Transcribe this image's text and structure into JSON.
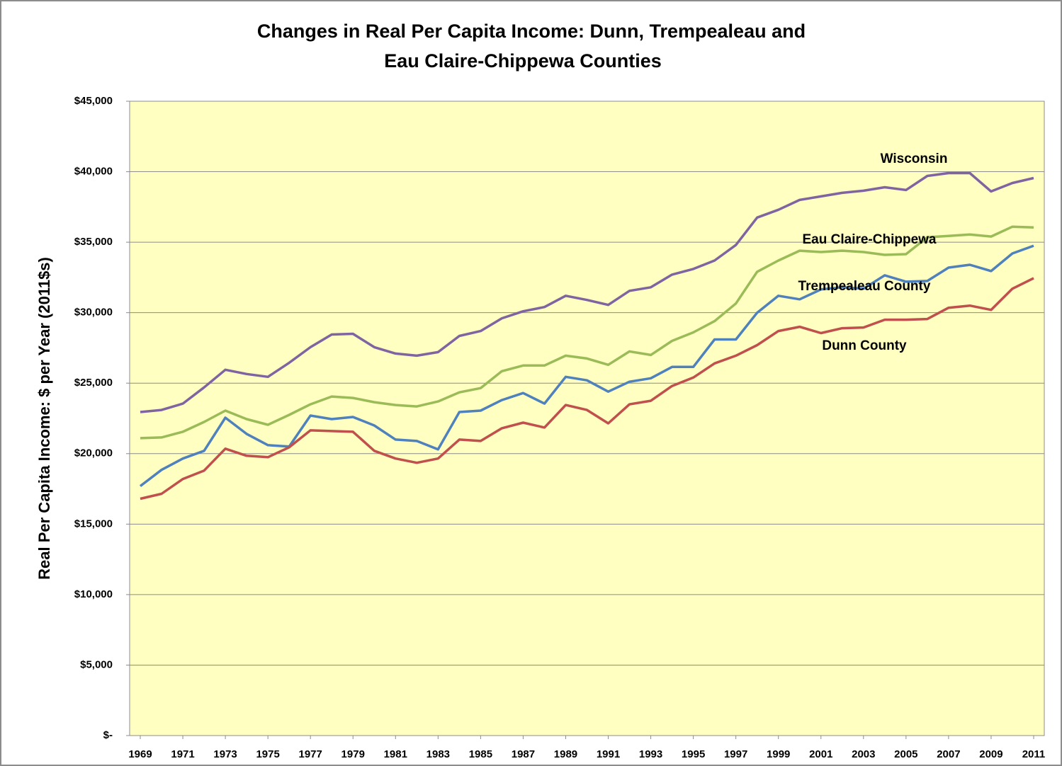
{
  "chart_data": {
    "type": "line",
    "title": [
      "Changes in Real Per Capita Income: Dunn, Trempealeau  and",
      "Eau Claire-Chippewa Counties"
    ],
    "y_label": "Real Per Capita Income: $ per Year (2011$s)",
    "x": [
      1969,
      1970,
      1971,
      1972,
      1973,
      1974,
      1975,
      1976,
      1977,
      1978,
      1979,
      1980,
      1981,
      1982,
      1983,
      1984,
      1985,
      1986,
      1987,
      1988,
      1989,
      1990,
      1991,
      1992,
      1993,
      1994,
      1995,
      1996,
      1997,
      1998,
      1999,
      2000,
      2001,
      2002,
      2003,
      2004,
      2005,
      2006,
      2007,
      2008,
      2009,
      2010,
      2011
    ],
    "xlim": [
      1968.5,
      2011.5
    ],
    "xticks": [
      1969,
      1971,
      1973,
      1975,
      1977,
      1979,
      1981,
      1983,
      1985,
      1987,
      1989,
      1991,
      1993,
      1995,
      1997,
      1999,
      2001,
      2003,
      2005,
      2007,
      2009,
      2011
    ],
    "ylim": [
      0,
      45000
    ],
    "yticks": [
      {
        "value": 0,
        "label": "$-"
      },
      {
        "value": 5000,
        "label": "$5,000"
      },
      {
        "value": 10000,
        "label": "$10,000"
      },
      {
        "value": 15000,
        "label": "$15,000"
      },
      {
        "value": 20000,
        "label": "$20,000"
      },
      {
        "value": 25000,
        "label": "$25,000"
      },
      {
        "value": 30000,
        "label": "$30,000"
      },
      {
        "value": 35000,
        "label": "$35,000"
      },
      {
        "value": 40000,
        "label": "$40,000"
      },
      {
        "value": 45000,
        "label": "$45,000"
      }
    ],
    "grid": true,
    "series": [
      {
        "name": "Wisconsin",
        "color": "#8064a2",
        "values": [
          22950,
          23100,
          23550,
          24700,
          25950,
          25650,
          25450,
          26450,
          27550,
          28450,
          28500,
          27550,
          27100,
          26950,
          27200,
          28350,
          28700,
          29600,
          30100,
          30400,
          31200,
          30900,
          30550,
          31550,
          31800,
          32700,
          33100,
          33700,
          34800,
          36750,
          37300,
          38000,
          38250,
          38500,
          38650,
          38900,
          38700,
          39700,
          39900,
          39900,
          38600,
          39200,
          39550
        ]
      },
      {
        "name": "Eau Claire-Chippewa",
        "color": "#9bbb59",
        "values": [
          21100,
          21150,
          21550,
          22250,
          23050,
          22450,
          22050,
          22750,
          23500,
          24050,
          23950,
          23650,
          23450,
          23350,
          23700,
          24350,
          24650,
          25850,
          26250,
          26250,
          26950,
          26750,
          26300,
          27250,
          27000,
          28000,
          28600,
          29400,
          30650,
          32900,
          33700,
          34400,
          34300,
          34400,
          34300,
          34100,
          34150,
          35350,
          35450,
          35550,
          35400,
          36100,
          36050
        ]
      },
      {
        "name": "Trempealeau County",
        "color": "#4f81bd",
        "values": [
          17700,
          18850,
          19650,
          20200,
          22550,
          21400,
          20600,
          20500,
          22700,
          22450,
          22600,
          22000,
          21000,
          20900,
          20300,
          22950,
          23050,
          23800,
          24300,
          23550,
          25450,
          25200,
          24400,
          25100,
          25350,
          26150,
          26150,
          28100,
          28100,
          30000,
          31200,
          30950,
          31650,
          31800,
          31700,
          32650,
          32200,
          32250,
          33200,
          33400,
          32950,
          34200,
          34750
        ]
      },
      {
        "name": "Dunn County",
        "color": "#c0504d",
        "values": [
          16800,
          17150,
          18200,
          18800,
          20350,
          19850,
          19750,
          20450,
          21650,
          21600,
          21550,
          20200,
          19650,
          19350,
          19650,
          21000,
          20900,
          21800,
          22200,
          21850,
          23450,
          23100,
          22150,
          23500,
          23750,
          24800,
          25400,
          26400,
          26950,
          27700,
          28700,
          29000,
          28550,
          28900,
          28950,
          29500,
          29500,
          29550,
          30350,
          30500,
          30200,
          31700,
          32450
        ]
      }
    ]
  }
}
